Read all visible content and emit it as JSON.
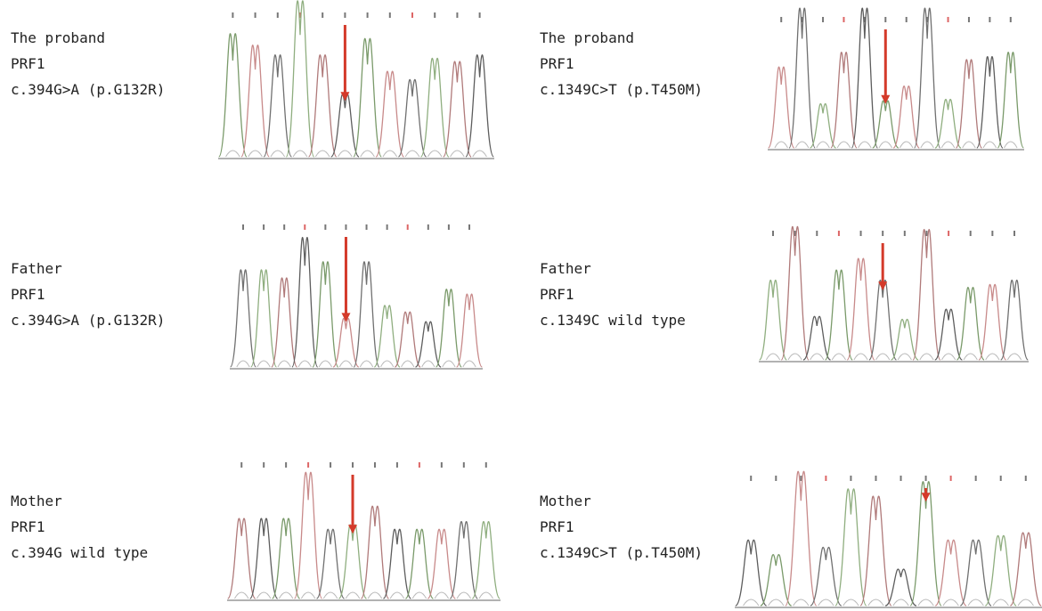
{
  "panels": [
    {
      "lines": [
        "The proband",
        "PRF1",
        "c.394G>A (p.G132R)"
      ]
    },
    {
      "lines": [
        "The proband",
        "PRF1",
        "c.1349C>T (p.T450M)"
      ]
    },
    {
      "lines": [
        "Father",
        "PRF1",
        "c.394G>A (p.G132R)"
      ]
    },
    {
      "lines": [
        "Father",
        "PRF1",
        "c.1349C wild type"
      ]
    },
    {
      "lines": [
        "Mother",
        "PRF1",
        "c.394G wild type"
      ]
    },
    {
      "lines": [
        "Mother",
        "PRF1",
        "c.1349C>T (p.T450M)"
      ]
    }
  ]
}
